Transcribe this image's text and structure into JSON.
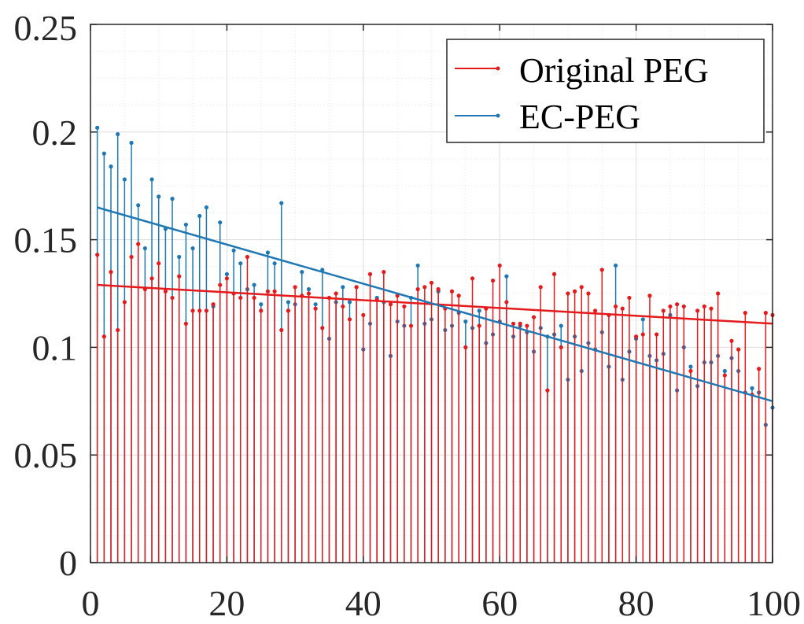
{
  "chart_data": {
    "type": "stem",
    "xlim": [
      0,
      100
    ],
    "ylim": [
      0,
      0.25
    ],
    "xticks": [
      0,
      20,
      40,
      60,
      80,
      100
    ],
    "yticks": [
      0,
      0.05,
      0.1,
      0.15,
      0.2,
      0.25
    ],
    "xtick_labels": [
      "0",
      "20",
      "40",
      "60",
      "80",
      "100"
    ],
    "ytick_labels": [
      "0",
      "0.05",
      "0.1",
      "0.15",
      "0.2",
      "0.25"
    ],
    "grid": true,
    "legend_position": "top-right",
    "x": [
      1,
      2,
      3,
      4,
      5,
      6,
      7,
      8,
      9,
      10,
      11,
      12,
      13,
      14,
      15,
      16,
      17,
      18,
      19,
      20,
      21,
      22,
      23,
      24,
      25,
      26,
      27,
      28,
      29,
      30,
      31,
      32,
      33,
      34,
      35,
      36,
      37,
      38,
      39,
      40,
      41,
      42,
      43,
      44,
      45,
      46,
      47,
      48,
      49,
      50,
      51,
      52,
      53,
      54,
      55,
      56,
      57,
      58,
      59,
      60,
      61,
      62,
      63,
      64,
      65,
      66,
      67,
      68,
      69,
      70,
      71,
      72,
      73,
      74,
      75,
      76,
      77,
      78,
      79,
      80,
      81,
      82,
      83,
      84,
      85,
      86,
      87,
      88,
      89,
      90,
      91,
      92,
      93,
      94,
      95,
      96,
      97,
      98,
      99,
      100
    ],
    "series": [
      {
        "name": "Original PEG",
        "color": "#e41a1c",
        "values": [
          0.143,
          0.105,
          0.135,
          0.108,
          0.121,
          0.142,
          0.148,
          0.127,
          0.132,
          0.139,
          0.126,
          0.123,
          0.133,
          0.111,
          0.117,
          0.117,
          0.117,
          0.12,
          0.129,
          0.132,
          0.125,
          0.123,
          0.142,
          0.123,
          0.117,
          0.126,
          0.126,
          0.108,
          0.117,
          0.128,
          0.124,
          0.125,
          0.118,
          0.109,
          0.123,
          0.125,
          0.119,
          0.113,
          0.128,
          0.115,
          0.134,
          0.122,
          0.135,
          0.12,
          0.124,
          0.119,
          0.11,
          0.127,
          0.128,
          0.13,
          0.127,
          0.118,
          0.126,
          0.124,
          0.1,
          0.132,
          0.11,
          0.118,
          0.131,
          0.138,
          0.121,
          0.111,
          0.111,
          0.11,
          0.114,
          0.128,
          0.08,
          0.134,
          0.1,
          0.125,
          0.126,
          0.128,
          0.125,
          0.117,
          0.136,
          0.115,
          0.119,
          0.118,
          0.123,
          0.105,
          0.106,
          0.124,
          0.106,
          0.117,
          0.119,
          0.12,
          0.119,
          0.089,
          0.117,
          0.119,
          0.118,
          0.125,
          0.087,
          0.103,
          0.099,
          0.116,
          0.078,
          0.09,
          0.116,
          0.115
        ],
        "trend": [
          0.129,
          0.111
        ]
      },
      {
        "name": "EC-PEG",
        "color": "#1f77b4",
        "values": [
          0.202,
          0.19,
          0.184,
          0.199,
          0.178,
          0.195,
          0.166,
          0.146,
          0.178,
          0.17,
          0.155,
          0.169,
          0.142,
          0.157,
          0.146,
          0.161,
          0.165,
          0.119,
          0.158,
          0.134,
          0.145,
          0.139,
          0.127,
          0.129,
          0.12,
          0.144,
          0.139,
          0.167,
          0.121,
          0.12,
          0.135,
          0.127,
          0.12,
          0.136,
          0.104,
          0.121,
          0.128,
          0.121,
          0.128,
          0.099,
          0.111,
          0.123,
          0.121,
          0.096,
          0.112,
          0.11,
          0.123,
          0.138,
          0.111,
          0.113,
          0.126,
          0.108,
          0.11,
          0.116,
          0.112,
          0.109,
          0.117,
          0.102,
          0.106,
          0.112,
          0.133,
          0.105,
          0.11,
          0.107,
          0.098,
          0.109,
          0.105,
          0.106,
          0.11,
          0.085,
          0.105,
          0.089,
          0.102,
          0.099,
          0.107,
          0.091,
          0.138,
          0.085,
          0.098,
          0.104,
          0.113,
          0.096,
          0.094,
          0.097,
          0.115,
          0.08,
          0.1,
          0.091,
          0.082,
          0.093,
          0.093,
          0.096,
          0.089,
          0.095,
          0.089,
          0.079,
          0.081,
          0.079,
          0.064,
          0.072
        ],
        "trend": [
          0.165,
          0.075
        ]
      }
    ]
  }
}
